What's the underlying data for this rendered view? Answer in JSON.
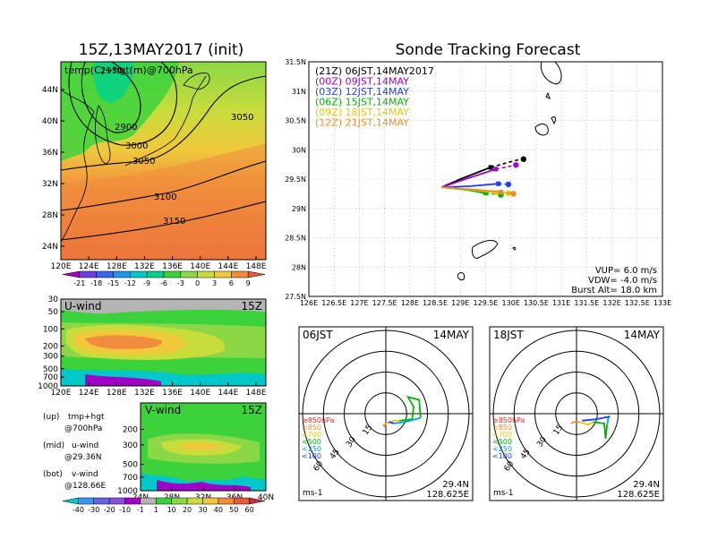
{
  "left_title": "15Z,13MAY2017 (init)",
  "right_title": "Sonde Tracking Forecast",
  "map_panel": {
    "label": "temp(C)+hgt(m)@700hPa",
    "x_ticks": [
      "120E",
      "124E",
      "128E",
      "132E",
      "136E",
      "140E",
      "144E",
      "148E"
    ],
    "y_ticks": [
      "24N",
      "28N",
      "32N",
      "36N",
      "40N",
      "44N"
    ],
    "contour_labels": [
      "2900",
      "2950",
      "3000",
      "3050",
      "3050",
      "3100",
      "3150"
    ]
  },
  "temp_colorbar": {
    "labels": [
      "-21",
      "-18",
      "-15",
      "-12",
      "-9",
      "-6",
      "-3",
      "0",
      "3",
      "6",
      "9"
    ],
    "colors": [
      "#a000c8",
      "#6e3cdc",
      "#3c64f0",
      "#1e96f0",
      "#00c8c8",
      "#00d28c",
      "#3cd23c",
      "#8cd746",
      "#c8dc3c",
      "#f0c83c",
      "#f08c3c",
      "#e65a3c"
    ]
  },
  "uwind_panel": {
    "label": "U-wind",
    "time": "15Z",
    "y_ticks": [
      "30",
      "50",
      "100",
      "200",
      "300",
      "500",
      "700",
      "1000"
    ],
    "x_ticks": [
      "120E",
      "124E",
      "128E",
      "132E",
      "136E",
      "140E",
      "144E",
      "148E"
    ]
  },
  "vwind_panel": {
    "label": "V-wind",
    "time": "15Z",
    "y_ticks": [
      "200",
      "300",
      "500",
      "700",
      "1000"
    ],
    "x_ticks": [
      "24N",
      "28N",
      "32N",
      "36N",
      "40N"
    ]
  },
  "legend_notes": [
    {
      "key": "(up)",
      "line1": "tmp+hgt",
      "line2": "@700hPa"
    },
    {
      "key": "(mid)",
      "line1": "u-wind",
      "line2": "@29.36N"
    },
    {
      "key": "(bot)",
      "line1": "v-wind",
      "line2": "@128.66E"
    }
  ],
  "wind_colorbar": {
    "labels": [
      "-40",
      "-30",
      "-20",
      "-10",
      "-1",
      "1",
      "10",
      "20",
      "30",
      "40",
      "50",
      "60"
    ],
    "colors": [
      "#00c8c8",
      "#3c96f0",
      "#6464e6",
      "#8c50dc",
      "#a000c8",
      "#b4b4b4",
      "#3cd23c",
      "#8cd746",
      "#c8dc3c",
      "#f0c83c",
      "#f08c3c",
      "#e65a3c",
      "#d2283c"
    ]
  },
  "chart_data": {
    "type": "line",
    "xlim": [
      126,
      133
    ],
    "ylim": [
      27.5,
      31.5
    ],
    "x_ticks": [
      "126E",
      "126.5E",
      "127E",
      "127.5E",
      "128E",
      "128.5E",
      "129E",
      "129.5E",
      "130E",
      "130.5E",
      "131E",
      "131.5E",
      "132E",
      "132.5E",
      "133E"
    ],
    "y_ticks": [
      "27.5N",
      "28N",
      "28.5N",
      "29N",
      "29.5N",
      "30N",
      "30.5N",
      "31N",
      "31.5N"
    ],
    "start": {
      "lon": 128.625,
      "lat": 29.36
    },
    "series": [
      {
        "name": "(21Z) 06JST,14MAY2017",
        "color": "#000000",
        "points": [
          [
            128.625,
            29.36
          ],
          [
            129.0,
            29.5
          ],
          [
            129.6,
            29.7
          ],
          [
            130.1,
            29.82
          ],
          [
            130.25,
            29.84
          ]
        ]
      },
      {
        "name": "(00Z) 09JST,14MAY",
        "color": "#a000c8",
        "points": [
          [
            128.625,
            29.36
          ],
          [
            129.1,
            29.5
          ],
          [
            129.7,
            29.67
          ],
          [
            130.1,
            29.74
          ]
        ]
      },
      {
        "name": "(03Z) 12JST,14MAY",
        "color": "#1e3cff",
        "points": [
          [
            128.625,
            29.36
          ],
          [
            129.2,
            29.38
          ],
          [
            129.75,
            29.42
          ],
          [
            129.95,
            29.41
          ]
        ]
      },
      {
        "name": "(06Z) 15JST,14MAY",
        "color": "#00b400",
        "points": [
          [
            128.625,
            29.36
          ],
          [
            129.1,
            29.32
          ],
          [
            129.5,
            29.26
          ],
          [
            129.8,
            29.23
          ]
        ]
      },
      {
        "name": "(09Z) 18JST,14MAY",
        "color": "#e6c800",
        "points": [
          [
            128.625,
            29.36
          ],
          [
            129.2,
            29.32
          ],
          [
            129.7,
            29.27
          ],
          [
            129.95,
            29.26
          ]
        ]
      },
      {
        "name": "(12Z) 21JST,14MAY",
        "color": "#f08c28",
        "points": [
          [
            128.625,
            29.36
          ],
          [
            129.3,
            29.32
          ],
          [
            129.8,
            29.28
          ],
          [
            130.05,
            29.25
          ]
        ]
      }
    ],
    "params": [
      "VUP=  6.0  m/s",
      "VDW= -4.0  m/s",
      "Burst Alt=  18.0  km"
    ]
  },
  "hodographs": [
    {
      "time": "06JST",
      "date": "14MAY",
      "lat": "29.4N",
      "lon": "128.625E",
      "units": "ms-1",
      "ring_labels": [
        "15",
        "30",
        "45",
        "60"
      ],
      "levels": [
        "≥850hPa",
        "<850",
        "<700",
        "<500",
        "<250",
        "<100"
      ],
      "level_colors": [
        "#e62828",
        "#f08c28",
        "#e6c800",
        "#00b400",
        "#00a0ff",
        "#1e3cff"
      ],
      "traces": [
        {
          "color": "#f08c28",
          "points": [
            [
              -2,
              -8
            ],
            [
              -1,
              -9
            ],
            [
              0,
              -7
            ]
          ]
        },
        {
          "color": "#e6c800",
          "points": [
            [
              0,
              -7
            ],
            [
              6,
              -5
            ],
            [
              10,
              -5
            ]
          ]
        },
        {
          "color": "#00b400",
          "points": [
            [
              10,
              -5
            ],
            [
              19,
              -4
            ],
            [
              20,
              5
            ],
            [
              16,
              12
            ],
            [
              24,
              10
            ],
            [
              25,
              -3
            ]
          ]
        },
        {
          "color": "#00a0ff",
          "points": [
            [
              25,
              -3
            ],
            [
              14,
              -6
            ],
            [
              6,
              -7
            ]
          ]
        },
        {
          "color": "#1e3cff",
          "points": [
            [
              6,
              -7
            ],
            [
              2,
              -6
            ]
          ]
        }
      ]
    },
    {
      "time": "18JST",
      "date": "14MAY",
      "lat": "29.4N",
      "lon": "128.625E",
      "units": "ms-1",
      "ring_labels": [
        "15",
        "30",
        "45",
        "60"
      ],
      "levels": [
        "≥850hPa",
        "<850",
        "<700",
        "<500",
        "<250",
        "<100"
      ],
      "level_colors": [
        "#e62828",
        "#f08c28",
        "#e6c800",
        "#00b400",
        "#00a0ff",
        "#1e3cff"
      ],
      "traces": [
        {
          "color": "#f08c28",
          "points": [
            [
              -4,
              -7
            ],
            [
              -2,
              -6
            ],
            [
              2,
              -6
            ]
          ]
        },
        {
          "color": "#e6c800",
          "points": [
            [
              2,
              -6
            ],
            [
              8,
              -8
            ],
            [
              12,
              -6
            ]
          ]
        },
        {
          "color": "#00b400",
          "points": [
            [
              12,
              -6
            ],
            [
              20,
              -7
            ],
            [
              21,
              -18
            ],
            [
              22,
              -8
            ]
          ]
        },
        {
          "color": "#00a0ff",
          "points": [
            [
              22,
              -8
            ],
            [
              23,
              -3
            ],
            [
              24,
              -2
            ]
          ]
        },
        {
          "color": "#1e3cff",
          "points": [
            [
              24,
              -2
            ],
            [
              14,
              -4
            ],
            [
              4,
              -5
            ]
          ]
        }
      ]
    }
  ]
}
